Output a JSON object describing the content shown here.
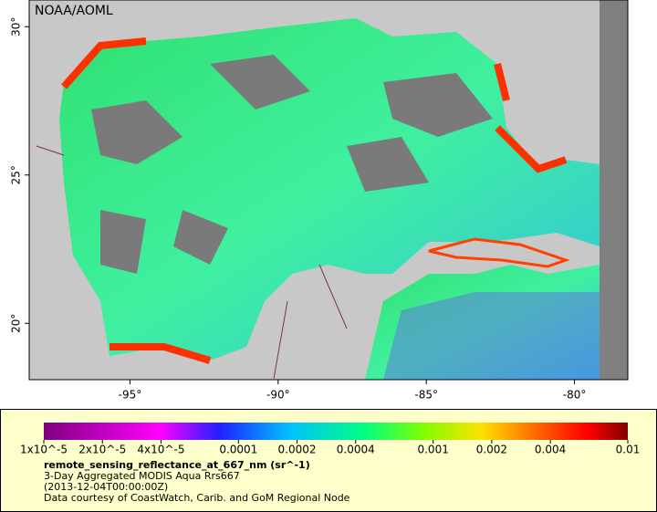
{
  "map": {
    "credit": "NOAA/AOML",
    "xlim": [
      -98.4,
      -78.2
    ],
    "ylim": [
      18.1,
      30.9
    ],
    "lon_ticks": [
      {
        "value": -95,
        "label": "-95°"
      },
      {
        "value": -90,
        "label": "-90°"
      },
      {
        "value": -85,
        "label": "-85°"
      },
      {
        "value": -80,
        "label": "-80°"
      }
    ],
    "lat_ticks": [
      {
        "value": 20,
        "label": "20°"
      },
      {
        "value": 25,
        "label": "25°"
      },
      {
        "value": 30,
        "label": "30°"
      }
    ]
  },
  "legend": {
    "scale": "log",
    "range": [
      1e-05,
      0.01
    ],
    "ticks": [
      {
        "value": 1e-05,
        "label": "1x10^-5"
      },
      {
        "value": 2e-05,
        "label": "2x10^-5"
      },
      {
        "value": 4e-05,
        "label": "4x10^-5"
      },
      {
        "value": 0.0001,
        "label": "0.0001"
      },
      {
        "value": 0.0002,
        "label": "0.0002"
      },
      {
        "value": 0.0004,
        "label": "0.0004"
      },
      {
        "value": 0.001,
        "label": "0.001"
      },
      {
        "value": 0.002,
        "label": "0.002"
      },
      {
        "value": 0.004,
        "label": "0.004"
      },
      {
        "value": 0.01,
        "label": "0.01"
      }
    ],
    "title": "remote_sensing_reflectance_at_667_nm (sr^-1)",
    "lines": [
      "3-Day Aggregated MODIS Aqua Rrs667",
      "(2013-12-04T00:00:00Z)",
      "Data courtesy of CoastWatch, Carib. and GoM Regional Node"
    ]
  }
}
